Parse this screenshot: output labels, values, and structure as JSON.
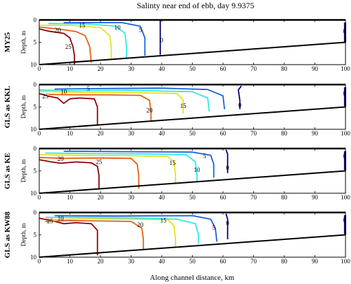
{
  "chart_data": {
    "type": "contour",
    "title": "Salinty near end of ebb, day 9.9375",
    "xlabel": "Along channel distance, km",
    "xlim": [
      0,
      100
    ],
    "x_ticks": [
      "0",
      "10",
      "20",
      "30",
      "40",
      "50",
      "60",
      "70",
      "80",
      "90",
      "100"
    ],
    "colors": {
      "25": "#8b0000",
      "20": "#e06010",
      "15": "#e8e020",
      "10": "#30e8e8",
      "5": "#1560e0",
      "0": "#000080"
    },
    "panels": [
      {
        "name": "MY25",
        "ylabel": "Depth, m",
        "ylim": [
          0,
          10
        ],
        "y_ticks": [
          "0",
          "5",
          "10"
        ],
        "bottom_depth": [
          10,
          5
        ],
        "contours": [
          {
            "level": 25,
            "label": "25",
            "label_at": [
              9.5,
              6
            ],
            "points": [
              [
                0,
                2
              ],
              [
                3,
                2.5
              ],
              [
                8,
                3
              ],
              [
                10,
                4
              ],
              [
                11,
                6
              ],
              [
                11.5,
                8
              ],
              [
                11.5,
                10
              ]
            ]
          },
          {
            "level": 20,
            "label": "20",
            "label_at": [
              6,
              2.3
            ],
            "points": [
              [
                0,
                1.6
              ],
              [
                6,
                2
              ],
              [
                12,
                2.6
              ],
              [
                15,
                3.5
              ],
              [
                16.5,
                6
              ],
              [
                17,
                9.6
              ]
            ]
          },
          {
            "level": 15,
            "label": "15",
            "label_at": [
              14,
              1.2
            ],
            "points": [
              [
                0,
                1.2
              ],
              [
                10,
                1.2
              ],
              [
                20,
                1.7
              ],
              [
                23,
                3.5
              ],
              [
                23.5,
                6
              ],
              [
                23.5,
                9
              ]
            ]
          },
          {
            "level": 10,
            "label": "10",
            "label_at": [
              25.5,
              1.7
            ],
            "points": [
              [
                3,
                0.8
              ],
              [
                16,
                0.9
              ],
              [
                25,
                1.4
              ],
              [
                28,
                3
              ],
              [
                28.5,
                6
              ],
              [
                28.5,
                8.5
              ]
            ]
          },
          {
            "level": 5,
            "label": "5",
            "label_at": [
              33,
              2.2
            ],
            "points": [
              [
                8,
                0.6
              ],
              [
                27,
                0.6
              ],
              [
                33,
                1.4
              ],
              [
                34.5,
                4
              ],
              [
                34.5,
                8
              ]
            ]
          },
          {
            "level": 0,
            "label": "0",
            "label_at": [
              40,
              4.5
            ],
            "points": [
              [
                39.5,
                0
              ],
              [
                39.5,
                2
              ],
              [
                39.5,
                6
              ],
              [
                39.5,
                7.8
              ]
            ]
          },
          {
            "level": 0,
            "label": "0",
            "label_at": [
              99.7,
              2.5
            ],
            "points": [
              [
                99.7,
                0.6
              ],
              [
                99.7,
                5
              ]
            ]
          }
        ]
      },
      {
        "name": "GLS as KKL",
        "ylabel": "Depth, m",
        "ylim": [
          0,
          10
        ],
        "y_ticks": [
          "0",
          "5",
          "10"
        ],
        "bottom_depth": [
          10,
          5
        ],
        "contours": [
          {
            "level": 25,
            "label": "25",
            "label_at": [
              2,
              2.6
            ],
            "points": [
              [
                0,
                2
              ],
              [
                3,
                2.6
              ],
              [
                6,
                3
              ],
              [
                8,
                4.2
              ],
              [
                10,
                3.2
              ],
              [
                13,
                3
              ],
              [
                18,
                3.2
              ],
              [
                19,
                5
              ],
              [
                19,
                9
              ]
            ]
          },
          {
            "level": 20,
            "label": "20",
            "label_at": [
              36,
              5.8
            ],
            "points": [
              [
                3,
                2.2
              ],
              [
                10,
                2.3
              ],
              [
                20,
                2.3
              ],
              [
                33,
                2.4
              ],
              [
                36,
                3.5
              ],
              [
                36.5,
                6
              ],
              [
                36.5,
                8
              ]
            ]
          },
          {
            "level": 15,
            "label": "15",
            "label_at": [
              47,
              4.8
            ],
            "points": [
              [
                0,
                1.5
              ],
              [
                15,
                1.8
              ],
              [
                30,
                1.8
              ],
              [
                45,
                2
              ],
              [
                47,
                3.5
              ],
              [
                47,
                6.5
              ]
            ]
          },
          {
            "level": 10,
            "label": "10",
            "label_at": [
              8,
              1.6
            ],
            "points": [
              [
                0,
                1.2
              ],
              [
                12,
                1.4
              ],
              [
                30,
                1.3
              ],
              [
                50,
                1.6
              ],
              [
                55,
                3
              ],
              [
                55.5,
                6
              ]
            ]
          },
          {
            "level": 5,
            "label": "5",
            "label_at": [
              16,
              0.9
            ],
            "points": [
              [
                5,
                1
              ],
              [
                20,
                0.9
              ],
              [
                40,
                0.8
              ],
              [
                55,
                1.1
              ],
              [
                60,
                2.5
              ],
              [
                60.5,
                5.5
              ]
            ]
          },
          {
            "level": 0,
            "label": "0",
            "label_at": [
              65.5,
              4.6
            ],
            "points": [
              [
                66,
                0.3
              ],
              [
                65,
                1.2
              ],
              [
                65.5,
                3.5
              ],
              [
                65.5,
                5.5
              ]
            ]
          },
          {
            "level": 0,
            "label": "0",
            "label_at": [
              99.7,
              2
            ],
            "points": [
              [
                99.7,
                0.6
              ],
              [
                99.7,
                4.8
              ]
            ]
          }
        ]
      },
      {
        "name": "GLS as KE",
        "ylabel": "Depth, m",
        "ylim": [
          0,
          10
        ],
        "y_ticks": [
          "0",
          "5",
          "10"
        ],
        "bottom_depth": [
          10,
          5
        ],
        "contours": [
          {
            "level": 25,
            "label": "25",
            "label_at": [
              19.5,
              3
            ],
            "points": [
              [
                0,
                2.5
              ],
              [
                4,
                3
              ],
              [
                7,
                3.3
              ],
              [
                12,
                3
              ],
              [
                17,
                3.2
              ],
              [
                19,
                4
              ],
              [
                19.5,
                6
              ],
              [
                19.5,
                9
              ]
            ]
          },
          {
            "level": 20,
            "label": "20",
            "label_at": [
              7,
              2.3
            ],
            "points": [
              [
                0,
                2
              ],
              [
                8,
                2.2
              ],
              [
                20,
                2.1
              ],
              [
                30,
                2.2
              ],
              [
                32,
                3.5
              ],
              [
                32.5,
                6
              ],
              [
                32.5,
                9
              ]
            ]
          },
          {
            "level": 15,
            "label": "15",
            "label_at": [
              43.5,
              3.2
            ],
            "points": [
              [
                0,
                1.4
              ],
              [
                15,
                1.5
              ],
              [
                30,
                1.6
              ],
              [
                42,
                1.8
              ],
              [
                44,
                3
              ],
              [
                44.5,
                6
              ],
              [
                44.5,
                8
              ]
            ]
          },
          {
            "level": 10,
            "label": "10",
            "label_at": [
              51.5,
              4.8
            ],
            "points": [
              [
                2,
                1
              ],
              [
                15,
                1.1
              ],
              [
                35,
                1.2
              ],
              [
                48,
                1.4
              ],
              [
                51,
                3
              ],
              [
                51.5,
                6
              ],
              [
                51.5,
                7.3
              ]
            ]
          },
          {
            "level": 5,
            "label": "5",
            "label_at": [
              54,
              1.7
            ],
            "points": [
              [
                8,
                0.6
              ],
              [
                30,
                0.7
              ],
              [
                50,
                0.8
              ],
              [
                56,
                1.5
              ],
              [
                57,
                3.5
              ],
              [
                57,
                6.5
              ]
            ]
          },
          {
            "level": 0,
            "label": "0",
            "label_at": [
              61.5,
              4.3
            ],
            "points": [
              [
                61,
                0.3
              ],
              [
                61.5,
                1.2
              ],
              [
                61.5,
                3
              ],
              [
                61.5,
                5.5
              ]
            ]
          },
          {
            "level": 0,
            "label": "0",
            "label_at": [
              99.7,
              1.7
            ],
            "points": [
              [
                99.7,
                0.6
              ],
              [
                99.7,
                4.8
              ]
            ]
          }
        ]
      },
      {
        "name": "GLS as KW88",
        "ylabel": "Depth, m",
        "ylim": [
          0,
          10
        ],
        "y_ticks": [
          "0",
          "5",
          "10"
        ],
        "bottom_depth": [
          10,
          5
        ],
        "contours": [
          {
            "level": 25,
            "label": "25",
            "label_at": [
              3.5,
              1.9
            ],
            "points": [
              [
                0,
                1.3
              ],
              [
                4,
                1.8
              ],
              [
                8,
                2.5
              ],
              [
                12,
                2.3
              ],
              [
                17,
                2.5
              ],
              [
                19,
                4
              ],
              [
                19,
                7
              ],
              [
                19,
                9.6
              ]
            ]
          },
          {
            "level": 20,
            "label": "20",
            "label_at": [
              33,
              2.8
            ],
            "points": [
              [
                2,
                2
              ],
              [
                10,
                1.8
              ],
              [
                20,
                1.9
              ],
              [
                30,
                2
              ],
              [
                33.5,
                3.5
              ],
              [
                34,
                6
              ],
              [
                34,
                8.3
              ]
            ]
          },
          {
            "level": 15,
            "label": "15",
            "label_at": [
              40.5,
              1.8
            ],
            "points": [
              [
                3,
                1.6
              ],
              [
                15,
                1.4
              ],
              [
                30,
                1.5
              ],
              [
                42,
                1.6
              ],
              [
                44,
                3
              ],
              [
                44.5,
                6
              ],
              [
                44.5,
                7.8
              ]
            ]
          },
          {
            "level": 10,
            "label": "10",
            "label_at": [
              7,
              1.3
            ],
            "points": [
              [
                2,
                1.1
              ],
              [
                12,
                1.1
              ],
              [
                30,
                1.2
              ],
              [
                45,
                1.5
              ],
              [
                51,
                2.5
              ],
              [
                52,
                5
              ],
              [
                52,
                7
              ]
            ]
          },
          {
            "level": 5,
            "label": "5",
            "label_at": [
              57,
              3.4
            ],
            "points": [
              [
                5,
                0.7
              ],
              [
                25,
                0.8
              ],
              [
                50,
                0.7
              ],
              [
                56,
                1.5
              ],
              [
                57.5,
                3.5
              ],
              [
                58,
                6.5
              ]
            ]
          },
          {
            "level": 0,
            "label": "0",
            "label_at": [
              61.5,
              2.4
            ],
            "points": [
              [
                61,
                0.3
              ],
              [
                61.5,
                1.5
              ],
              [
                61.5,
                3.5
              ],
              [
                61.5,
                6
              ]
            ]
          },
          {
            "level": 0,
            "label": "0",
            "label_at": [
              99.7,
              1.7
            ],
            "points": [
              [
                99.7,
                0.6
              ],
              [
                99.7,
                4.8
              ]
            ]
          }
        ]
      }
    ]
  }
}
